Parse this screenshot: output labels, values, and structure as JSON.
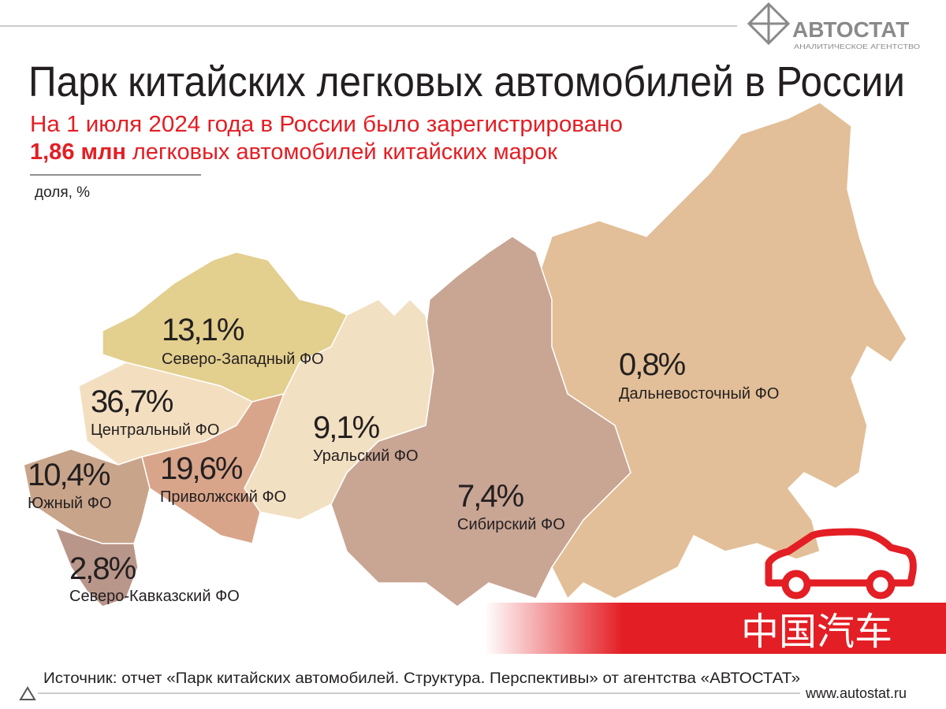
{
  "logo": {
    "name": "АВТОСТАТ",
    "tagline": "АНАЛИТИЧЕСКОЕ АГЕНТСТВО"
  },
  "title": "Парк китайских легковых автомобилей в России",
  "subtitle": {
    "line1": "На 1 июля 2024 года в России было зарегистрировано",
    "highlight": "1,86 млн",
    "rest": "легковых автомобилей китайских марок"
  },
  "unit_label": "доля, %",
  "regions": [
    {
      "share": "13,1%",
      "name": "Северо-Западный ФО"
    },
    {
      "share": "36,7%",
      "name": "Центральный ФО"
    },
    {
      "share": "10,4%",
      "name": "Южный ФО"
    },
    {
      "share": "19,6%",
      "name": "Приволжский ФО"
    },
    {
      "share": "9,1%",
      "name": "Уральский ФО"
    },
    {
      "share": "7,4%",
      "name": "Сибирский ФО"
    },
    {
      "share": "0,8%",
      "name": "Дальневосточный ФО"
    },
    {
      "share": "2,8%",
      "name": "Северо-Кавказский ФО"
    }
  ],
  "banner": "中国汽车",
  "source": "Источник: отчет «Парк китайских автомобилей. Структура. Перспективы» от агентства «АВТОСТАТ»",
  "url": "www.autostat.ru"
}
